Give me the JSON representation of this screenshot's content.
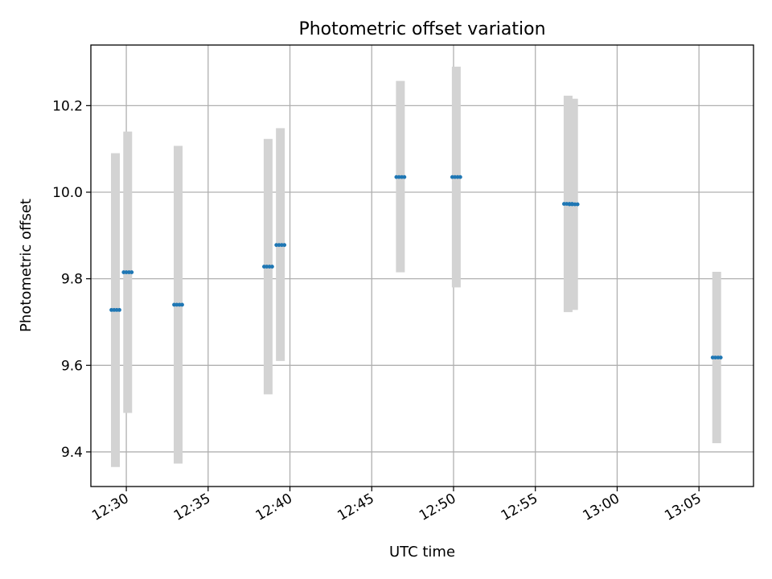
{
  "chart_data": {
    "type": "scatter",
    "title": "Photometric offset variation",
    "xlabel": "UTC time",
    "ylabel": "Photometric offset",
    "grid": true,
    "xlim": [
      "12:27:50",
      "13:08:20"
    ],
    "ylim": [
      9.32,
      10.34
    ],
    "x_ticks": [
      "12:30",
      "12:35",
      "12:40",
      "12:45",
      "12:50",
      "12:55",
      "13:00",
      "13:05"
    ],
    "y_ticks": [
      "9.4",
      "9.6",
      "9.8",
      "10.0",
      "10.2"
    ],
    "colors": {
      "marker": "#1f77b4",
      "errorbar": "#d3d3d3",
      "grid": "#b0b0b0"
    },
    "series": [
      {
        "points": [
          {
            "x": "12:29:20",
            "y": 9.728,
            "ylow": 9.365,
            "yhigh": 10.09
          },
          {
            "x": "12:30:05",
            "y": 9.815,
            "ylow": 9.49,
            "yhigh": 10.14
          },
          {
            "x": "12:33:10",
            "y": 9.74,
            "ylow": 9.373,
            "yhigh": 10.107
          },
          {
            "x": "12:38:40",
            "y": 9.828,
            "ylow": 9.533,
            "yhigh": 10.123
          },
          {
            "x": "12:39:25",
            "y": 9.878,
            "ylow": 9.61,
            "yhigh": 10.148
          },
          {
            "x": "12:46:45",
            "y": 10.035,
            "ylow": 9.815,
            "yhigh": 10.257
          },
          {
            "x": "12:50:10",
            "y": 10.035,
            "ylow": 9.78,
            "yhigh": 10.29
          },
          {
            "x": "12:57:00",
            "y": 9.973,
            "ylow": 9.723,
            "yhigh": 10.223
          },
          {
            "x": "12:57:20",
            "y": 9.972,
            "ylow": 9.728,
            "yhigh": 10.216
          },
          {
            "x": "13:06:05",
            "y": 9.618,
            "ylow": 9.42,
            "yhigh": 9.816
          }
        ]
      }
    ]
  }
}
